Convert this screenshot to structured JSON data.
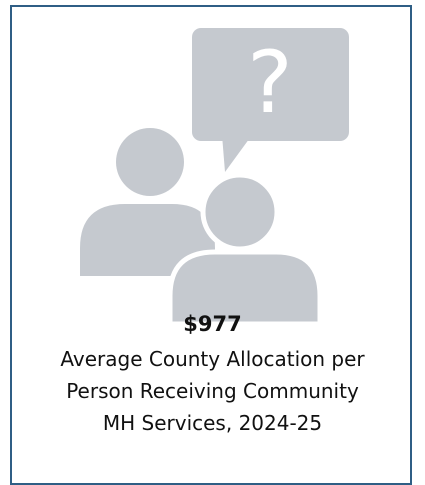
{
  "card": {
    "value": "$977",
    "description_lines": [
      "Average County Allocation per",
      "Person Receiving Community",
      "MH Services, 2024-25"
    ]
  }
}
